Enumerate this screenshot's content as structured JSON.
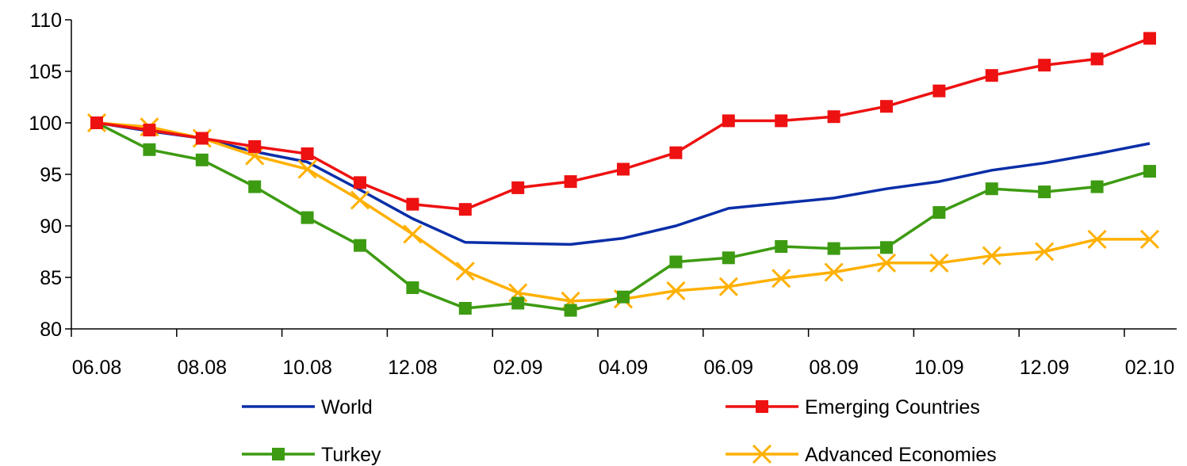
{
  "chart_data": {
    "type": "line",
    "title": "",
    "xlabel": "",
    "ylabel": "",
    "ylim": [
      80,
      110
    ],
    "yticks": [
      80,
      85,
      90,
      95,
      100,
      105,
      110
    ],
    "x": [
      "06.08",
      "07.08",
      "08.08",
      "09.08",
      "10.08",
      "11.08",
      "12.08",
      "01.09",
      "02.09",
      "03.09",
      "04.09",
      "05.09",
      "06.09",
      "07.09",
      "08.09",
      "09.09",
      "10.09",
      "11.09",
      "12.09",
      "01.10",
      "02.10"
    ],
    "xtick_labels": [
      "06.08",
      "08.08",
      "10.08",
      "12.08",
      "02.09",
      "04.09",
      "06.09",
      "08.09",
      "10.09",
      "12.09",
      "02.10"
    ],
    "grid": false,
    "legend_position": "bottom",
    "series": [
      {
        "name": "World",
        "color": "#0a2ea8",
        "marker": "none",
        "values": [
          100.0,
          99.2,
          98.5,
          97.2,
          96.2,
          93.5,
          90.7,
          88.4,
          88.3,
          88.2,
          88.8,
          90.0,
          91.7,
          92.2,
          92.7,
          93.6,
          94.3,
          95.4,
          96.1,
          97.0,
          98.0
        ]
      },
      {
        "name": "Emerging Countries",
        "color": "#ee1111",
        "marker": "square",
        "values": [
          100.0,
          99.3,
          98.5,
          97.7,
          97.0,
          94.2,
          92.1,
          91.6,
          93.7,
          94.3,
          95.5,
          97.1,
          100.2,
          100.2,
          100.6,
          101.6,
          103.1,
          104.6,
          105.6,
          106.2,
          108.2
        ]
      },
      {
        "name": "Turkey",
        "color": "#3d9b12",
        "marker": "square",
        "values": [
          100.0,
          97.4,
          96.4,
          93.8,
          90.8,
          88.1,
          84.0,
          82.0,
          82.5,
          81.8,
          83.1,
          86.5,
          86.9,
          88.0,
          87.8,
          87.9,
          91.3,
          93.6,
          93.3,
          93.8,
          95.3
        ]
      },
      {
        "name": "Advanced Economies",
        "color": "#ffb000",
        "marker": "x",
        "values": [
          100.0,
          99.6,
          98.5,
          96.8,
          95.5,
          92.5,
          89.2,
          85.6,
          83.5,
          82.7,
          82.9,
          83.7,
          84.1,
          84.9,
          85.5,
          86.4,
          86.4,
          87.1,
          87.5,
          88.7,
          88.7
        ]
      }
    ]
  }
}
